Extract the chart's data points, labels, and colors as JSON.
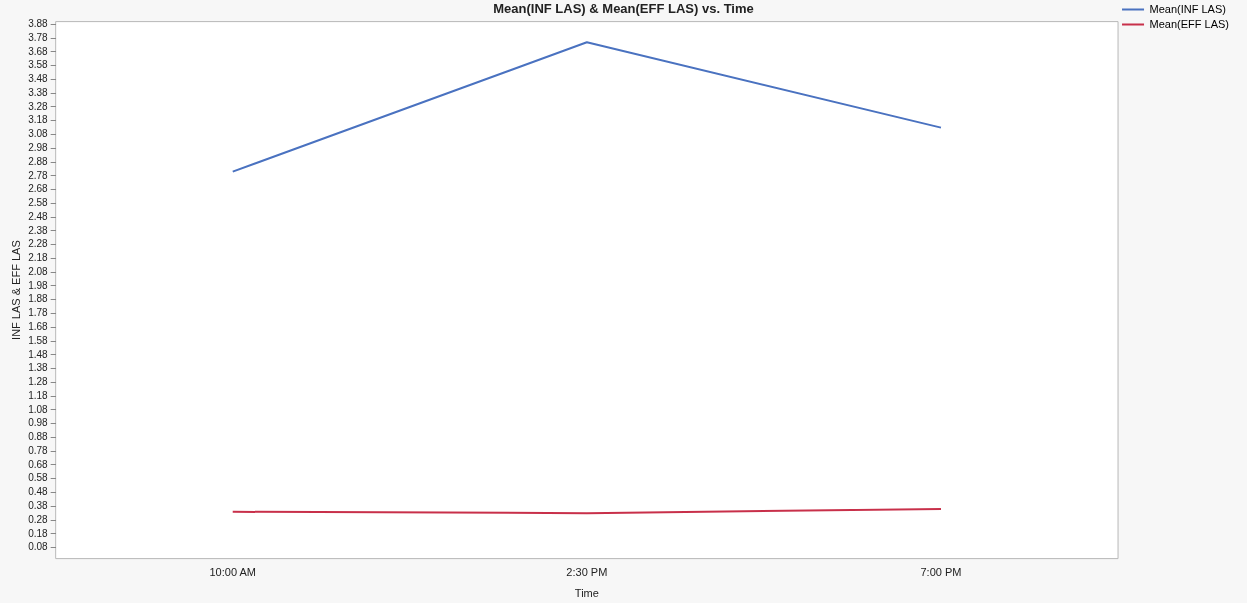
{
  "chart_data": {
    "type": "line",
    "title": "Mean(INF LAS) & Mean(EFF LAS) vs. Time",
    "xlabel": "Time",
    "ylabel": "INF LAS & EFF LAS",
    "categories": [
      "10:00 AM",
      "2:30 PM",
      "7:00 PM"
    ],
    "series": [
      {
        "name": "Mean(INF LAS)",
        "color": "#4a72c0",
        "values": [
          2.81,
          3.75,
          3.13
        ]
      },
      {
        "name": "Mean(EFF LAS)",
        "color": "#c8304a",
        "values": [
          0.34,
          0.33,
          0.36
        ]
      }
    ],
    "ylim": [
      0,
      3.9
    ],
    "yticks": [
      0.08,
      0.18,
      0.28,
      0.38,
      0.48,
      0.58,
      0.68,
      0.78,
      0.88,
      0.98,
      1.08,
      1.18,
      1.28,
      1.38,
      1.48,
      1.58,
      1.68,
      1.78,
      1.88,
      1.98,
      2.08,
      2.18,
      2.28,
      2.38,
      2.48,
      2.58,
      2.68,
      2.78,
      2.88,
      2.98,
      3.08,
      3.18,
      3.28,
      3.38,
      3.48,
      3.58,
      3.68,
      3.78,
      3.88
    ],
    "grid": false,
    "legend": "top right",
    "marker": "none",
    "line_style": "solid"
  }
}
